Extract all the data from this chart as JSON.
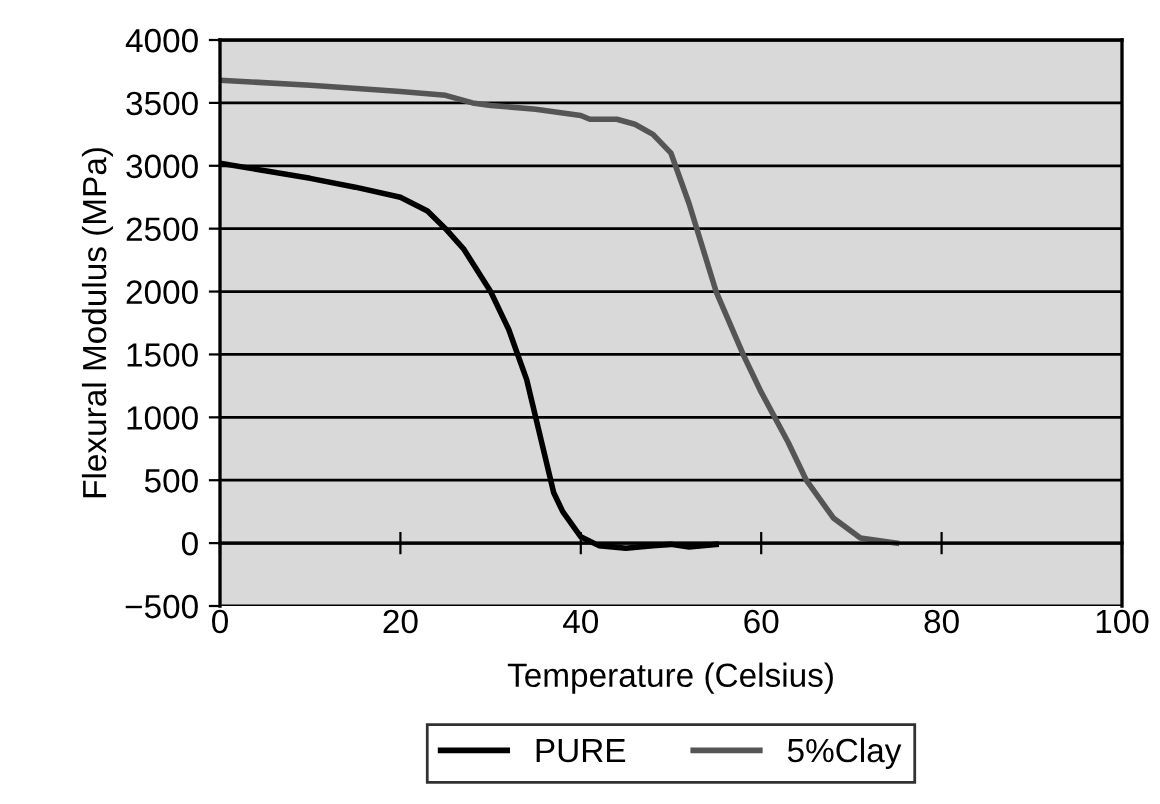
{
  "chart_data": {
    "type": "line",
    "xlabel": "Temperature (Celsius)",
    "ylabel": "Flexural Modulus (MPa)",
    "xlim": [
      0,
      100
    ],
    "xticks": [
      0,
      20,
      40,
      60,
      80,
      100
    ],
    "ylim": [
      -500,
      4000
    ],
    "yticks": [
      {
        "value": -500,
        "label": "−500"
      },
      0,
      500,
      1000,
      1500,
      2000,
      2500,
      3000,
      3500,
      4000
    ],
    "grid": "y",
    "legend": "bottom",
    "marker": "none",
    "line_style": "solid",
    "series": [
      {
        "name": "PURE",
        "color": "#000000",
        "x": [
          0,
          5,
          10,
          15,
          20,
          23,
          25,
          27,
          30,
          32,
          33,
          34,
          35,
          36,
          37,
          38,
          40,
          42,
          45,
          48,
          50,
          52,
          55
        ],
        "values": [
          3020,
          2960,
          2900,
          2830,
          2750,
          2640,
          2500,
          2340,
          2000,
          1700,
          1500,
          1300,
          1000,
          700,
          400,
          250,
          50,
          -20,
          -40,
          -20,
          -10,
          -30,
          -10
        ]
      },
      {
        "name": "5%Clay",
        "color": "#555555",
        "x": [
          0,
          10,
          20,
          25,
          28,
          30,
          35,
          40,
          41,
          44,
          46,
          48,
          50,
          52,
          55,
          58,
          60,
          63,
          65,
          68,
          71,
          75
        ],
        "values": [
          3680,
          3640,
          3590,
          3560,
          3500,
          3480,
          3450,
          3400,
          3370,
          3370,
          3330,
          3250,
          3100,
          2700,
          2000,
          1500,
          1200,
          800,
          500,
          200,
          40,
          0
        ]
      }
    ]
  }
}
